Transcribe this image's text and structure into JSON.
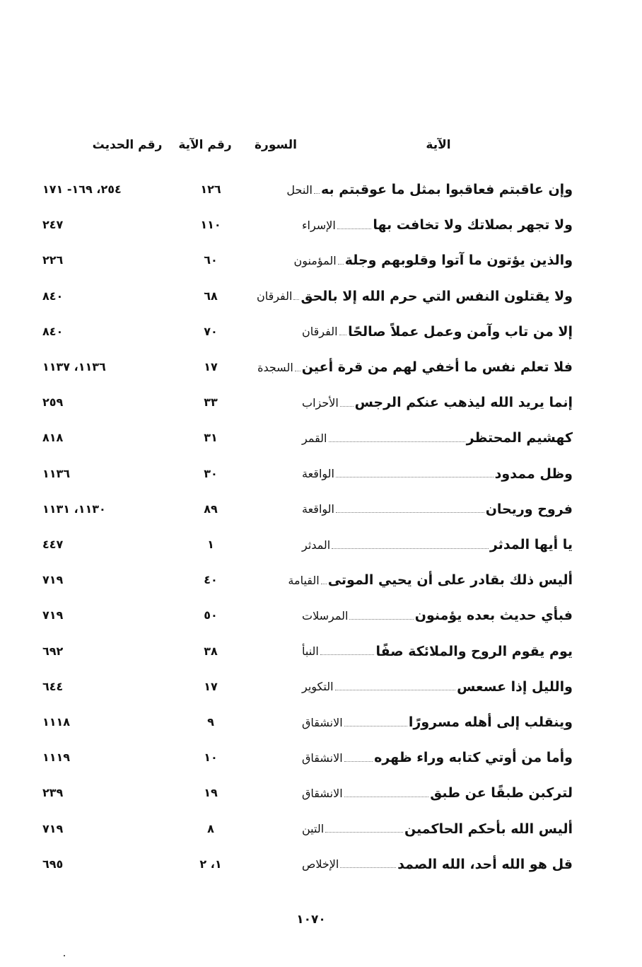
{
  "headers": {
    "verse": "الآية",
    "surah": "السورة",
    "ayah_number": "رقم الآية",
    "hadith_number": "رقم الحديث"
  },
  "rows": [
    {
      "verse": "وإن عاقبتم فعاقبوا بمثل ما عوقبتم به",
      "surah": "النحل",
      "ayah": "١٢٦",
      "hadith": "٢٥٤، ١٦٩- ١٧١"
    },
    {
      "verse": "ولا تجهر بصلاتك ولا تخافت بها",
      "surah": "الإسراء",
      "ayah": "١١٠",
      "hadith": "٢٤٧"
    },
    {
      "verse": "والذين يؤتون ما آتوا وقلوبهم وجلة",
      "surah": "المؤمنون",
      "ayah": "٦٠",
      "hadith": "٢٢٦"
    },
    {
      "verse": "ولا يقتلون النفس التي حرم الله إلا بالحق",
      "surah": "الفرقان",
      "ayah": "٦٨",
      "hadith": "٨٤٠"
    },
    {
      "verse": "إلا من تاب وآمن وعمل عملاً صالحًا",
      "surah": "الفرقان",
      "ayah": "٧٠",
      "hadith": "٨٤٠"
    },
    {
      "verse": "فلا تعلم نفس ما أخفي لهم من قرة أعين",
      "surah": "السجدة",
      "ayah": "١٧",
      "hadith": "١١٣٦، ١١٣٧"
    },
    {
      "verse": "إنما يريد الله ليذهب عنكم الرجس",
      "surah": "الأحزاب",
      "ayah": "٣٣",
      "hadith": "٢٥٩"
    },
    {
      "verse": "كهشيم المحتظر",
      "surah": "القمر",
      "ayah": "٣١",
      "hadith": "٨١٨"
    },
    {
      "verse": "وظل ممدود",
      "surah": "الواقعة",
      "ayah": "٣٠",
      "hadith": "١١٣٦"
    },
    {
      "verse": "فروح وريحان",
      "surah": "الواقعة",
      "ayah": "٨٩",
      "hadith": "١١٣٠، ١١٣١"
    },
    {
      "verse": "يا أيها المدثر",
      "surah": "المدثر",
      "ayah": "١",
      "hadith": "٤٤٧"
    },
    {
      "verse": "أليس ذلك بقادر على أن يحيي الموتى",
      "surah": "القيامة",
      "ayah": "٤٠",
      "hadith": "٧١٩"
    },
    {
      "verse": "فبأي حديث بعده يؤمنون",
      "surah": "المرسلات",
      "ayah": "٥٠",
      "hadith": "٧١٩"
    },
    {
      "verse": "يوم يقوم الروح والملائكة صفًا",
      "surah": "النبأ",
      "ayah": "٣٨",
      "hadith": "٦٩٢"
    },
    {
      "verse": "والليل إذا عسعس",
      "surah": "التكوير",
      "ayah": "١٧",
      "hadith": "٦٤٤"
    },
    {
      "verse": "وينقلب إلى أهله مسرورًا",
      "surah": "الانشقاق",
      "ayah": "٩",
      "hadith": "١١١٨"
    },
    {
      "verse": "وأما من أوتي كتابه وراء ظهره",
      "surah": "الانشقاق",
      "ayah": "١٠",
      "hadith": "١١١٩"
    },
    {
      "verse": "لتركبن طبقًا عن طبق",
      "surah": "الانشقاق",
      "ayah": "١٩",
      "hadith": "٢٣٩"
    },
    {
      "verse": "أليس الله بأحكم الحاكمين",
      "surah": "التين",
      "ayah": "٨",
      "hadith": "٧١٩"
    },
    {
      "verse": "قل هو الله أحد، الله الصمد",
      "surah": "الإخلاص",
      "ayah": "١، ٢",
      "hadith": "٦٩٥"
    }
  ],
  "page_number": "١٠٧٠"
}
